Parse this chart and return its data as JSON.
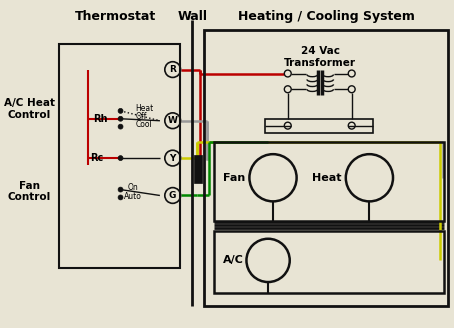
{
  "bg_color": "#e8e4d4",
  "thermostat_label": "Thermostat",
  "wall_label": "Wall",
  "hcs_label": "Heating / Cooling System",
  "ac_heat_label": "A/C Heat\nControl",
  "fan_ctrl_label": "Fan\nControl",
  "transformer_label": "24 Vac\nTransformer",
  "fan_label": "Fan",
  "heat_label": "Heat",
  "ac_label": "A/C",
  "color_red": "#bb0000",
  "color_gray": "#999999",
  "color_yellow": "#cccc00",
  "color_green": "#008800",
  "color_black": "#000000",
  "color_dark": "#111111",
  "color_bg": "#e8e4d4"
}
